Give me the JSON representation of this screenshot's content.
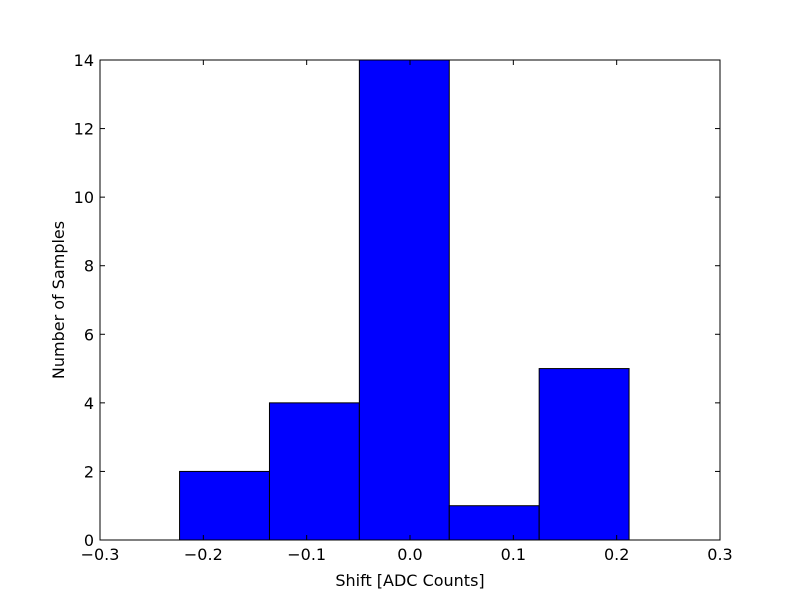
{
  "chart_data": {
    "type": "bar",
    "title": "",
    "xlabel": "Shift [ADC Counts]",
    "ylabel": "Number of Samples",
    "xlim": [
      -0.3,
      0.3
    ],
    "ylim": [
      0,
      14
    ],
    "xticks": [
      -0.3,
      -0.2,
      -0.1,
      0.0,
      0.1,
      0.2,
      0.3
    ],
    "xtick_labels": [
      "−0.3",
      "−0.2",
      "−0.1",
      "0.0",
      "0.1",
      "0.2",
      "0.3"
    ],
    "yticks": [
      0,
      2,
      4,
      6,
      8,
      10,
      12,
      14
    ],
    "ytick_labels": [
      "0",
      "2",
      "4",
      "6",
      "8",
      "10",
      "12",
      "14"
    ],
    "bin_edges": [
      -0.223,
      -0.136,
      -0.049,
      0.038,
      0.125,
      0.212
    ],
    "values": [
      2,
      4,
      14,
      1,
      5
    ],
    "grid": false,
    "legend": "none",
    "colors": {
      "bar_fill": "#0000ff",
      "bar_edge": "#000000",
      "axes": "#000000",
      "background": "#ffffff"
    }
  }
}
